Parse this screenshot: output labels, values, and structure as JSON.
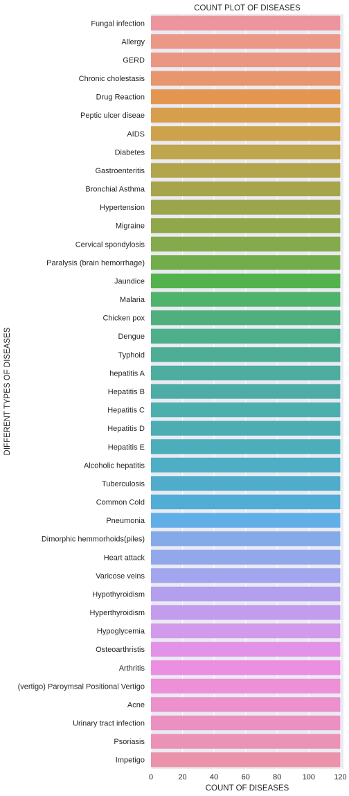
{
  "chart_data": {
    "type": "bar",
    "orientation": "horizontal",
    "title": "COUNT PLOT OF DISEASES",
    "xlabel": "COUNT OF DISEASES",
    "ylabel": "DIFFERENT TYPES OF DISEASES",
    "xlim": [
      0,
      122
    ],
    "xticks": [
      0,
      20,
      40,
      60,
      80,
      100,
      120
    ],
    "grid": true,
    "background": "#eaeaf2",
    "categories": [
      "Fungal infection",
      "Allergy",
      "GERD",
      "Chronic cholestasis",
      "Drug Reaction",
      "Peptic ulcer diseae",
      "AIDS",
      "Diabetes ",
      "Gastroenteritis",
      "Bronchial Asthma",
      "Hypertension ",
      "Migraine",
      "Cervical spondylosis",
      "Paralysis (brain hemorrhage)",
      "Jaundice",
      "Malaria",
      "Chicken pox",
      "Dengue",
      "Typhoid",
      "hepatitis A",
      "Hepatitis B",
      "Hepatitis C",
      "Hepatitis D",
      "Hepatitis E",
      "Alcoholic hepatitis",
      "Tuberculosis",
      "Common Cold",
      "Pneumonia",
      "Dimorphic hemmorhoids(piles)",
      "Heart attack",
      "Varicose veins",
      "Hypothyroidism",
      "Hyperthyroidism",
      "Hypoglycemia",
      "Osteoarthristis",
      "Arthritis",
      "(vertigo) Paroymsal  Positional Vertigo",
      "Acne",
      "Urinary tract infection",
      "Psoriasis",
      "Impetigo"
    ],
    "values": [
      120,
      120,
      120,
      120,
      120,
      120,
      120,
      120,
      120,
      120,
      120,
      120,
      120,
      120,
      120,
      120,
      120,
      120,
      120,
      120,
      120,
      120,
      120,
      120,
      120,
      120,
      120,
      120,
      120,
      120,
      120,
      120,
      120,
      120,
      120,
      120,
      120,
      120,
      120,
      120,
      120
    ],
    "colors": [
      "#ed959f",
      "#ec9887",
      "#ea9682",
      "#e8966d",
      "#e49650",
      "#d79e4c",
      "#cca34c",
      "#bfa54c",
      "#b3a54b",
      "#a6a54b",
      "#9ba54b",
      "#90a74a",
      "#84aa4b",
      "#72ad4b",
      "#52b24c",
      "#4fb36c",
      "#4fb07e",
      "#4eaf8b",
      "#4eae95",
      "#4dad9e",
      "#4dada6",
      "#4daeae",
      "#4caeb3",
      "#4caeba",
      "#4daec4",
      "#4fadcb",
      "#51acd6",
      "#62aee9",
      "#84aae8",
      "#92a8ea",
      "#a2a6ee",
      "#b39fee",
      "#c49cee",
      "#d29aeb",
      "#e393e7",
      "#eb8fe1",
      "#ec90d7",
      "#eb91cc",
      "#eb91c2",
      "#eb92b7",
      "#eb93ab"
    ]
  }
}
